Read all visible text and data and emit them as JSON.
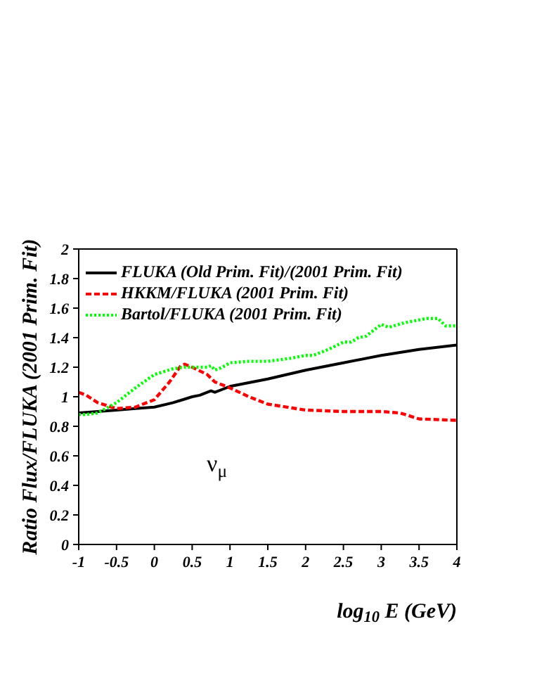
{
  "chart_data": {
    "type": "line",
    "xlabel": "log$_{10}$ E (GeV)",
    "ylabel": "Ratio Flux/FLUKA (2001 Prim. Fit)",
    "xlim": [
      -1,
      4
    ],
    "xticks": [
      -1,
      -0.5,
      0,
      0.5,
      1,
      1.5,
      2,
      2.5,
      3,
      3.5,
      4
    ],
    "ylim": [
      0,
      2
    ],
    "yticks": [
      0,
      0.2,
      0.4,
      0.6,
      0.8,
      1,
      1.2,
      1.4,
      1.6,
      1.8,
      2
    ],
    "grid": false,
    "legend": "top left",
    "marker": "none",
    "annotations": [
      "ν$_{μ}$"
    ],
    "series": [
      {
        "name": "FLUKA (Old Prim. Fit)/(2001 Prim. Fit)",
        "color": "#000000",
        "line_style": "solid",
        "x": [
          -1,
          -0.75,
          -0.5,
          -0.25,
          0,
          0.25,
          0.5,
          0.6,
          0.7,
          0.75,
          0.8,
          0.9,
          1,
          1.5,
          2,
          2.5,
          3,
          3.5,
          4
        ],
        "values": [
          0.89,
          0.9,
          0.91,
          0.92,
          0.93,
          0.96,
          1.0,
          1.01,
          1.03,
          1.04,
          1.03,
          1.05,
          1.07,
          1.12,
          1.18,
          1.23,
          1.28,
          1.32,
          1.35
        ]
      },
      {
        "name": "HKKM/FLUKA (2001 Prim. Fit)",
        "color": "#ff0000",
        "line_style": "dashed",
        "x": [
          -1,
          -0.9,
          -0.75,
          -0.5,
          -0.25,
          0,
          0.2,
          0.35,
          0.4,
          0.5,
          0.7,
          0.8,
          1,
          1.25,
          1.5,
          2,
          2.5,
          2.75,
          3,
          3.25,
          3.5,
          4
        ],
        "values": [
          1.03,
          1.01,
          0.96,
          0.92,
          0.93,
          0.98,
          1.1,
          1.21,
          1.22,
          1.2,
          1.15,
          1.1,
          1.06,
          1.0,
          0.95,
          0.91,
          0.9,
          0.9,
          0.9,
          0.89,
          0.85,
          0.84
        ]
      },
      {
        "name": "Bartol/FLUKA (2001 Prim. Fit)",
        "color": "#00ff00",
        "line_style": "dotted",
        "x": [
          -1,
          -0.9,
          -0.75,
          -0.5,
          -0.25,
          0,
          0.25,
          0.4,
          0.5,
          0.7,
          0.75,
          0.8,
          0.9,
          1,
          1.25,
          1.5,
          1.8,
          2,
          2.1,
          2.3,
          2.5,
          2.6,
          2.7,
          2.8,
          3,
          3.1,
          3.3,
          3.5,
          3.6,
          3.75,
          3.85,
          4
        ],
        "values": [
          0.88,
          0.88,
          0.89,
          0.96,
          1.06,
          1.15,
          1.19,
          1.2,
          1.2,
          1.2,
          1.21,
          1.18,
          1.2,
          1.23,
          1.24,
          1.24,
          1.26,
          1.28,
          1.28,
          1.32,
          1.37,
          1.37,
          1.4,
          1.41,
          1.49,
          1.47,
          1.5,
          1.52,
          1.53,
          1.53,
          1.48,
          1.48
        ]
      }
    ]
  }
}
